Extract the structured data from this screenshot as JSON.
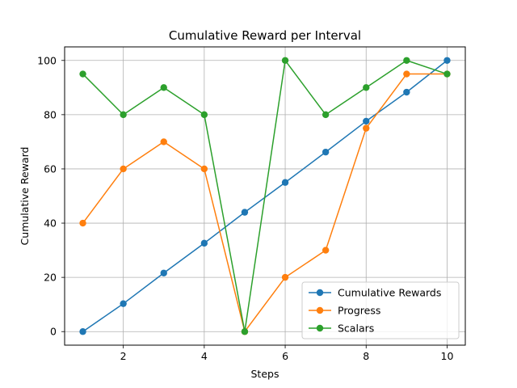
{
  "chart_data": {
    "type": "line",
    "title": "Cumulative Reward per Interval",
    "xlabel": "Steps",
    "ylabel": "Cumulative Reward",
    "x": [
      1,
      2,
      3,
      4,
      5,
      6,
      7,
      8,
      9,
      10
    ],
    "xlim": [
      0.55,
      10.45
    ],
    "ylim": [
      -5,
      105
    ],
    "xticks": [
      2,
      4,
      6,
      8,
      10
    ],
    "yticks": [
      0,
      20,
      40,
      60,
      80,
      100
    ],
    "grid": true,
    "legend_position": "lower right",
    "series": [
      {
        "name": "Cumulative Rewards",
        "color": "#1f77b4",
        "values": [
          0,
          10.3,
          21.6,
          32.6,
          44,
          55,
          66.2,
          77.6,
          88.3,
          100
        ]
      },
      {
        "name": "Progress",
        "color": "#ff7f0e",
        "values": [
          40,
          60,
          70,
          60,
          0,
          20,
          30,
          75,
          95,
          95
        ]
      },
      {
        "name": "Scalars",
        "color": "#2ca02c",
        "values": [
          95,
          80,
          90,
          80,
          0,
          100,
          80,
          90,
          100,
          95
        ]
      }
    ]
  }
}
